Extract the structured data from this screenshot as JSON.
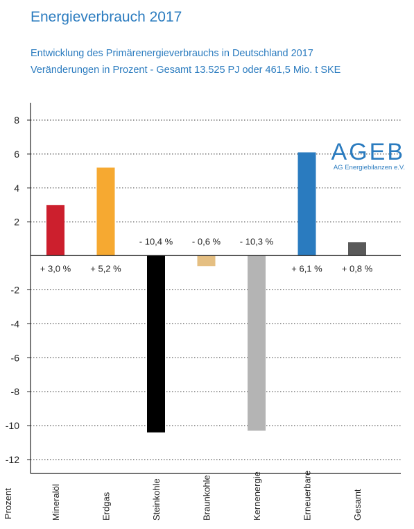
{
  "header": {
    "title": "Energieverbrauch 2017",
    "subtitle_line1": "Entwicklung des Primärenergieverbrauchs in Deutschland 2017",
    "subtitle_line2": "Veränderungen in Prozent - Gesamt 13.525 PJ oder 461,5 Mio. t SKE"
  },
  "logo": {
    "name": "AGEB",
    "tagline": "AG Energiebilanzen e.V."
  },
  "colors": {
    "accent": "#2a7bbf",
    "Mineralöl": "#cc1f2d",
    "Erdgas": "#f6a931",
    "Steinkohle": "#000000",
    "Braunkohle": "#e5bf82",
    "Kernenergie": "#b4b4b4",
    "Erneuerbare": "#2a7bbf",
    "Gesamt": "#595959"
  },
  "chart_data": {
    "type": "bar",
    "title": "Energieverbrauch 2017",
    "subtitle": "Entwicklung des Primärenergieverbrauchs in Deutschland 2017 / Veränderungen in Prozent - Gesamt 13.525 PJ oder 461,5 Mio. t SKE",
    "xlabel": "",
    "ylabel": "Prozent",
    "categories": [
      "Mineralöl",
      "Erdgas",
      "Steinkohle",
      "Braunkohle",
      "Kernenergie",
      "Erneuerbare",
      "Gesamt"
    ],
    "values": [
      3.0,
      5.2,
      -10.4,
      -0.6,
      -10.3,
      6.1,
      0.8
    ],
    "data_labels": [
      "+ 3,0 %",
      "+ 5,2 %",
      "- 10,4 %",
      "- 0,6 %",
      "- 10,3 %",
      "+ 6,1 %",
      "+ 0,8 %"
    ],
    "ylim": [
      -12,
      8
    ],
    "yticks": [
      8,
      6,
      4,
      2,
      -2,
      -4,
      -6,
      -8,
      -10,
      -12
    ],
    "ytick_labels": [
      "8",
      "6",
      "4",
      "2",
      "-2",
      "-4",
      "-6",
      "-8",
      "-10",
      "-12"
    ],
    "grid": true,
    "legend": "none"
  }
}
